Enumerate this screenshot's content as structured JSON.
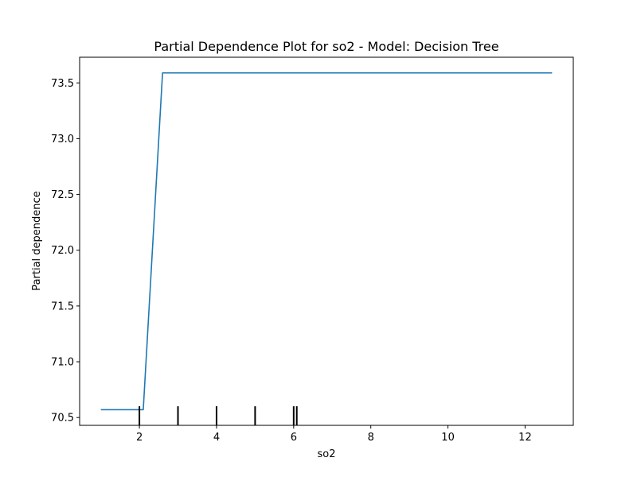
{
  "chart_data": {
    "type": "line",
    "title": "Partial Dependence Plot for so2 - Model: Decision Tree",
    "xlabel": "so2",
    "ylabel": "Partial dependence",
    "xlim": [
      0.45,
      13.25
    ],
    "ylim": [
      70.43,
      73.73
    ],
    "xticks": [
      2,
      4,
      6,
      8,
      10,
      12
    ],
    "yticks": [
      70.5,
      71.0,
      71.5,
      72.0,
      72.5,
      73.0,
      73.5
    ],
    "xtick_labels": [
      "2",
      "4",
      "6",
      "8",
      "10",
      "12"
    ],
    "ytick_labels": [
      "70.5",
      "71.0",
      "71.5",
      "72.0",
      "72.5",
      "73.0",
      "73.5"
    ],
    "grid": false,
    "series": [
      {
        "color": "#1f77b4",
        "x": [
          1.0,
          2.1,
          2.6,
          12.7
        ],
        "y": [
          70.57,
          70.57,
          73.59,
          73.59
        ]
      }
    ],
    "rug": {
      "color": "#000000",
      "x": [
        2.0,
        3.0,
        4.0,
        5.0,
        6.0,
        6.08
      ]
    }
  }
}
